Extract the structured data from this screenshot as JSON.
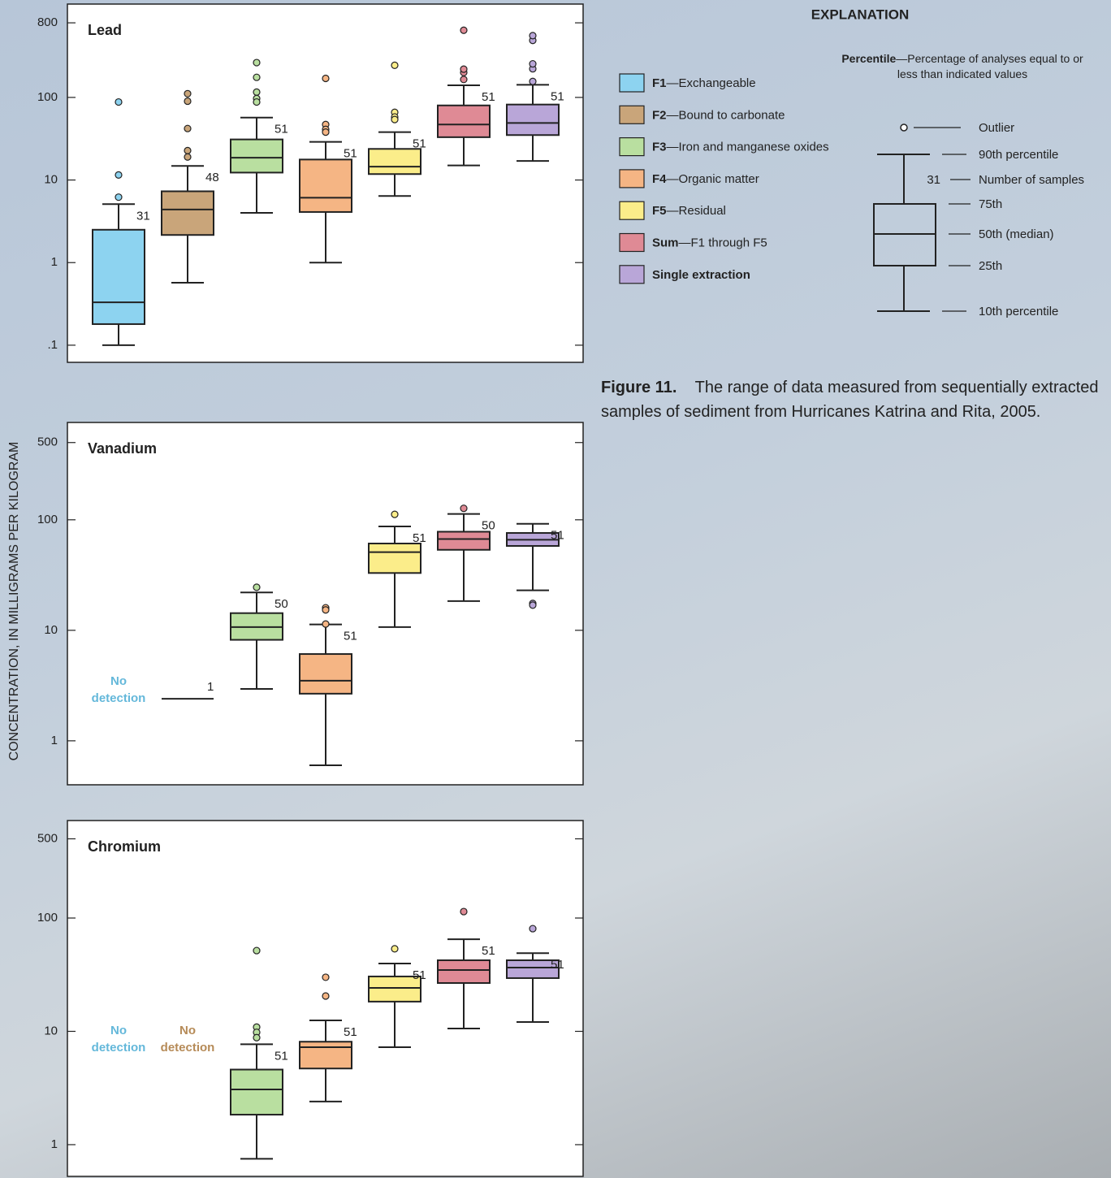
{
  "y_axis_label": "CONCENTRATION, IN MILLIGRAMS PER KILOGRAM",
  "legend": [
    {
      "code": "F1",
      "description": "—Exchangeable",
      "color": "#8dd3f0"
    },
    {
      "code": "F2",
      "description": "—Bound to carbonate",
      "color": "#c9a57a"
    },
    {
      "code": "F3",
      "description": "—Iron and manganese oxides",
      "color": "#b9dfa0"
    },
    {
      "code": "F4",
      "description": "—Organic matter",
      "color": "#f5b584"
    },
    {
      "code": "F5",
      "description": "—Residual",
      "color": "#fbed8a"
    },
    {
      "code": "Sum",
      "description": "—F1 through F5",
      "color": "#df8a95"
    },
    {
      "code": "Single extraction",
      "color": "#b9a6d8"
    }
  ],
  "chart_data": [
    {
      "type": "box",
      "title": "Lead",
      "log_scale": true,
      "ylim": [
        0.062,
        1350
      ],
      "yticks": [
        800,
        100,
        10,
        1,
        {
          "value": 0.1,
          "label": ".1"
        }
      ],
      "boxes": [
        {
          "low": 0.1,
          "q1": 0.18,
          "median": 0.33,
          "q3": 2.5,
          "high": 5.1,
          "outliers": [
            88,
            11.5,
            6.2
          ],
          "n": 31
        },
        {
          "low": 0.57,
          "q1": 2.16,
          "median": 4.4,
          "q3": 7.3,
          "high": 14.8,
          "outliers": [
            111,
            90,
            42,
            22.7,
            19
          ],
          "n": 48
        },
        {
          "low": 4.0,
          "q1": 12.3,
          "median": 18.6,
          "q3": 31,
          "high": 57,
          "outliers": [
            264,
            175,
            116,
            97,
            88
          ],
          "n": 51
        },
        {
          "low": 1.0,
          "q1": 4.1,
          "median": 6.1,
          "q3": 17.7,
          "high": 29,
          "outliers": [
            170,
            47,
            41,
            38
          ],
          "n": 51
        },
        {
          "low": 6.4,
          "q1": 11.8,
          "median": 14.5,
          "q3": 23.8,
          "high": 38,
          "outliers": [
            245,
            66,
            58,
            54
          ],
          "n": 51
        },
        {
          "low": 15,
          "q1": 33,
          "median": 47,
          "q3": 80,
          "high": 140,
          "outliers": [
            165,
            200,
            220,
            650
          ],
          "n": 51
        },
        {
          "low": 17,
          "q1": 35,
          "median": 49,
          "q3": 82,
          "high": 142,
          "outliers": [
            156,
            222,
            255,
            490,
            560
          ],
          "n": 51
        }
      ]
    },
    {
      "type": "box",
      "title": "Vanadium",
      "log_scale": true,
      "ylim": [
        0.4,
        760
      ],
      "yticks": [
        500,
        100,
        10,
        1
      ],
      "boxes": [
        {
          "note": "No detection"
        },
        {
          "value": 2.4,
          "n": 1
        },
        {
          "low": 2.95,
          "q1": 8.2,
          "median": 10.7,
          "q3": 14.3,
          "high": 22,
          "outliers": [
            24.5
          ],
          "n": 50
        },
        {
          "low": 0.6,
          "q1": 2.67,
          "median": 3.5,
          "q3": 6.1,
          "high": 11.3,
          "outliers": [
            16,
            15.3,
            11.4
          ],
          "n": 51
        },
        {
          "low": 10.7,
          "q1": 33,
          "median": 51,
          "q3": 61,
          "high": 87,
          "outliers": [
            112
          ],
          "n": 51
        },
        {
          "low": 18.4,
          "q1": 53.5,
          "median": 67,
          "q3": 78,
          "high": 113,
          "outliers": [
            127
          ],
          "n": 50
        },
        {
          "low": 23,
          "q1": 58,
          "median": 66,
          "q3": 76,
          "high": 92,
          "outliers": [
            17.5,
            16.9
          ],
          "n": 51
        }
      ]
    },
    {
      "type": "box",
      "title": "Chromium",
      "log_scale": true,
      "ylim": [
        0.525,
        725
      ],
      "yticks": [
        500,
        100,
        10,
        1
      ],
      "boxes": [
        {
          "note": "No detection"
        },
        {
          "note": "No detection"
        },
        {
          "low": 0.75,
          "q1": 1.84,
          "median": 3.07,
          "q3": 4.6,
          "high": 7.7,
          "outliers": [
            51.6,
            10.9,
            9.8,
            8.8
          ],
          "n": 51
        },
        {
          "low": 2.4,
          "q1": 4.7,
          "median": 7.25,
          "q3": 8.1,
          "high": 12.5,
          "outliers": [
            30,
            20.5
          ],
          "n": 51
        },
        {
          "low": 7.25,
          "q1": 18.3,
          "median": 24.2,
          "q3": 30.5,
          "high": 39.7,
          "outliers": [
            53.5
          ],
          "n": 51
        },
        {
          "low": 10.6,
          "q1": 26.7,
          "median": 34.8,
          "q3": 42.4,
          "high": 65,
          "outliers": [
            114
          ],
          "n": 51
        },
        {
          "low": 12.1,
          "q1": 29.5,
          "median": 36.5,
          "q3": 42.4,
          "high": 49,
          "outliers": [
            80.6
          ],
          "n": 51
        }
      ]
    }
  ],
  "explanation": {
    "title": "EXPLANATION",
    "percentile_term": "Percentile",
    "percentile_definition": "—Percentage of analyses equal to or less than indicated values",
    "sample_number": 31,
    "labels": [
      "Outlier",
      "90th percentile",
      "Number of samples",
      "75th",
      "50th (median)",
      "25th",
      "10th percentile"
    ]
  },
  "caption": {
    "label": "Figure 11.",
    "text": "The range of data measured from sequentially extracted samples of sediment from Hurricanes Katrina and Rita, 2005."
  }
}
